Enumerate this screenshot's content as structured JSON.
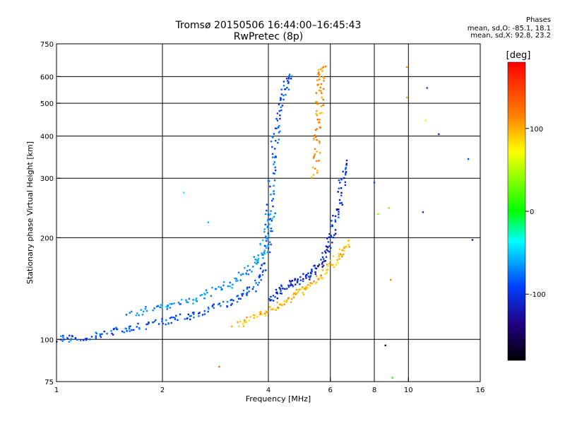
{
  "chart_data": {
    "type": "scatter",
    "title": "Tromsø 20150506 16:44:00–16:45:43",
    "subtitle": "RwPretec (8p)",
    "xlabel": "Frequency [MHz]",
    "ylabel": "Stationary phase Virtual Height [km]",
    "x_scale": "log",
    "y_scale": "log",
    "xlim": [
      1,
      16
    ],
    "ylim": [
      75,
      750
    ],
    "x_ticks": [
      1,
      2,
      4,
      6,
      8,
      10,
      16
    ],
    "y_ticks": [
      75,
      100,
      200,
      300,
      400,
      500,
      600,
      750
    ],
    "grid": true,
    "stats": {
      "heading": "Phases",
      "line_o": "mean, sd,O: -85.1, 18.1",
      "line_x": "mean, sd,X:  92.8, 23.2"
    },
    "colorbar": {
      "label": "[deg]",
      "range": [
        -180,
        180
      ],
      "ticks": [
        100,
        0,
        -100
      ]
    },
    "traces": [
      {
        "phase_deg": -95,
        "points": [
          [
            1.02,
            101
          ],
          [
            1.1,
            100
          ],
          [
            1.3,
            103
          ],
          [
            1.5,
            106
          ],
          [
            1.7,
            109
          ],
          [
            2.0,
            113
          ],
          [
            2.3,
            116
          ],
          [
            2.6,
            120
          ],
          [
            3.0,
            127
          ],
          [
            3.4,
            135
          ],
          [
            3.7,
            145
          ],
          [
            3.9,
            165
          ],
          [
            4.0,
            200
          ],
          [
            4.05,
            260
          ],
          [
            4.1,
            330
          ],
          [
            4.2,
            400
          ],
          [
            4.35,
            480
          ],
          [
            4.5,
            560
          ],
          [
            4.6,
            610
          ]
        ]
      },
      {
        "phase_deg": -75,
        "points": [
          [
            1.6,
            118
          ],
          [
            1.9,
            124
          ],
          [
            2.2,
            128
          ],
          [
            2.6,
            134
          ],
          [
            3.0,
            143
          ],
          [
            3.4,
            155
          ],
          [
            3.7,
            168
          ],
          [
            3.85,
            185
          ],
          [
            4.0,
            210
          ],
          [
            4.1,
            240
          ]
        ]
      },
      {
        "phase_deg": -110,
        "points": [
          [
            4.05,
            130
          ],
          [
            4.3,
            138
          ],
          [
            4.6,
            145
          ],
          [
            5.0,
            150
          ],
          [
            5.3,
            158
          ],
          [
            5.6,
            168
          ],
          [
            5.9,
            185
          ],
          [
            6.1,
            205
          ],
          [
            6.3,
            240
          ],
          [
            6.5,
            290
          ],
          [
            6.7,
            340
          ]
        ]
      },
      {
        "phase_deg": 95,
        "points": [
          [
            3.2,
            110
          ],
          [
            3.6,
            116
          ],
          [
            4.0,
            122
          ],
          [
            4.4,
            128
          ],
          [
            4.8,
            135
          ],
          [
            5.2,
            142
          ],
          [
            5.6,
            152
          ],
          [
            6.0,
            165
          ],
          [
            6.4,
            180
          ],
          [
            6.8,
            195
          ]
        ]
      },
      {
        "phase_deg": 110,
        "points": [
          [
            5.4,
            300
          ],
          [
            5.5,
            380
          ],
          [
            5.55,
            450
          ],
          [
            5.6,
            520
          ],
          [
            5.65,
            600
          ],
          [
            5.7,
            640
          ]
        ]
      }
    ],
    "scattered_points": [
      {
        "x": 2.3,
        "y": 272,
        "phase_deg": -40
      },
      {
        "x": 2.7,
        "y": 222,
        "phase_deg": -60
      },
      {
        "x": 8.0,
        "y": 291,
        "phase_deg": -100
      },
      {
        "x": 8.2,
        "y": 235,
        "phase_deg": 40
      },
      {
        "x": 8.8,
        "y": 245,
        "phase_deg": 30
      },
      {
        "x": 9.9,
        "y": 640,
        "phase_deg": 110
      },
      {
        "x": 9.9,
        "y": 520,
        "phase_deg": 100
      },
      {
        "x": 11.3,
        "y": 555,
        "phase_deg": -100
      },
      {
        "x": 11.2,
        "y": 445,
        "phase_deg": 60
      },
      {
        "x": 12.2,
        "y": 405,
        "phase_deg": -110
      },
      {
        "x": 14.8,
        "y": 342,
        "phase_deg": -100
      },
      {
        "x": 15.2,
        "y": 197,
        "phase_deg": -130
      },
      {
        "x": 11.0,
        "y": 238,
        "phase_deg": -110
      },
      {
        "x": 8.6,
        "y": 96,
        "phase_deg": -150
      },
      {
        "x": 2.9,
        "y": 83,
        "phase_deg": 130
      },
      {
        "x": 9.0,
        "y": 77,
        "phase_deg": 10
      },
      {
        "x": 8.9,
        "y": 150,
        "phase_deg": 120
      }
    ]
  }
}
